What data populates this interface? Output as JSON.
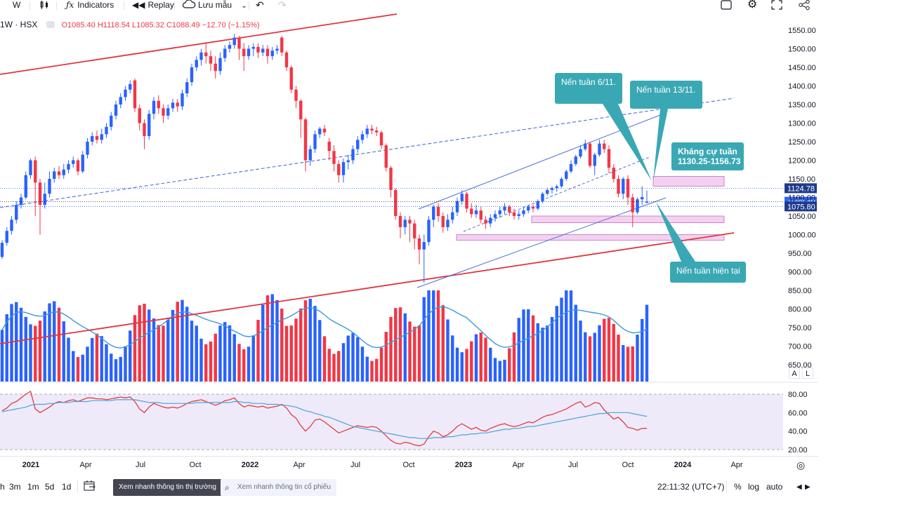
{
  "toolbar": {
    "interval": "W",
    "indicators": "Indicators",
    "replay": "Replay",
    "save": "Lưu mẫu",
    "icons": [
      "candles-icon",
      "fx-icon",
      "replay-icon",
      "cloud-icon",
      "chevron-down-icon",
      "undo-icon",
      "redo-icon",
      "square-icon",
      "gear-icon",
      "fullscreen-icon",
      "share-icon"
    ]
  },
  "legend": {
    "symbol": "1W · HSX",
    "open": "O1085.40",
    "high": "H1118.54",
    "low": "L1085.32",
    "close": "C1088.49",
    "change": "−12.70 (−1.15%)"
  },
  "axis_buttons": {
    "a": "A",
    "l": "L"
  },
  "bottom": {
    "ranges": [
      "3m",
      "1m",
      "5d",
      "1d"
    ],
    "market_btn": "Xem nhanh thông tin thị trường",
    "stock_search": "Xem nhanh thông tin cổ phiếu",
    "clock": "22:11:32 (UTC+7)",
    "percent": "%",
    "log": "log",
    "auto": "auto"
  },
  "chart_data": {
    "type": "candlestick",
    "interval": "1W",
    "price_axis": [
      "1550.00",
      "1500.00",
      "1450.00",
      "1400.00",
      "1350.00",
      "1300.00",
      "1250.00",
      "1200.00",
      "1150.00",
      "1100.00",
      "1050.00",
      "1000.00",
      "950.00",
      "900.00",
      "850.00",
      "800.00",
      "750.00",
      "700.00",
      "650.00"
    ],
    "price_range": [
      640,
      1560
    ],
    "time_axis": [
      "2021",
      "Apr",
      "Jul",
      "Oct",
      "2022",
      "Apr",
      "Jul",
      "Oct",
      "2023",
      "Apr",
      "Jul",
      "Oct",
      "2024",
      "Apr"
    ],
    "price_labels": [
      {
        "text": "1124.78",
        "value": 1124.78,
        "style": "dark"
      },
      {
        "text": "1088.49",
        "value": 1088.49,
        "style": "blue"
      },
      {
        "text": "1075.80",
        "value": 1075.8,
        "style": "dark"
      }
    ],
    "rsi_axis": [
      "80.00",
      "60.00",
      "40.00",
      "20.00"
    ],
    "rsi_band": [
      20,
      80
    ],
    "candles": [
      {
        "o": 940,
        "c": 978,
        "h": 985,
        "l": 935
      },
      {
        "o": 978,
        "c": 1010,
        "h": 1020,
        "l": 970
      },
      {
        "o": 1010,
        "c": 1040,
        "h": 1050,
        "l": 1000
      },
      {
        "o": 1040,
        "c": 1080,
        "h": 1090,
        "l": 1030
      },
      {
        "o": 1080,
        "c": 1100,
        "h": 1110,
        "l": 1070
      },
      {
        "o": 1100,
        "c": 1160,
        "h": 1170,
        "l": 1095
      },
      {
        "o": 1160,
        "c": 1200,
        "h": 1205,
        "l": 1150
      },
      {
        "o": 1200,
        "c": 1140,
        "h": 1210,
        "l": 1050
      },
      {
        "o": 1140,
        "c": 1080,
        "h": 1150,
        "l": 1000
      },
      {
        "o": 1080,
        "c": 1110,
        "h": 1140,
        "l": 1070
      },
      {
        "o": 1110,
        "c": 1150,
        "h": 1170,
        "l": 1100
      },
      {
        "o": 1150,
        "c": 1170,
        "h": 1180,
        "l": 1140
      },
      {
        "o": 1170,
        "c": 1160,
        "h": 1185,
        "l": 1150
      },
      {
        "o": 1160,
        "c": 1175,
        "h": 1190,
        "l": 1150
      },
      {
        "o": 1175,
        "c": 1190,
        "h": 1200,
        "l": 1165
      },
      {
        "o": 1190,
        "c": 1200,
        "h": 1210,
        "l": 1180
      },
      {
        "o": 1200,
        "c": 1170,
        "h": 1205,
        "l": 1160
      },
      {
        "o": 1170,
        "c": 1215,
        "h": 1225,
        "l": 1165
      },
      {
        "o": 1215,
        "c": 1250,
        "h": 1260,
        "l": 1205
      },
      {
        "o": 1250,
        "c": 1265,
        "h": 1275,
        "l": 1240
      },
      {
        "o": 1265,
        "c": 1255,
        "h": 1280,
        "l": 1245
      },
      {
        "o": 1255,
        "c": 1270,
        "h": 1285,
        "l": 1245
      },
      {
        "o": 1270,
        "c": 1290,
        "h": 1300,
        "l": 1260
      },
      {
        "o": 1290,
        "c": 1320,
        "h": 1330,
        "l": 1280
      },
      {
        "o": 1320,
        "c": 1350,
        "h": 1360,
        "l": 1310
      },
      {
        "o": 1350,
        "c": 1370,
        "h": 1380,
        "l": 1340
      },
      {
        "o": 1370,
        "c": 1390,
        "h": 1400,
        "l": 1360
      },
      {
        "o": 1390,
        "c": 1405,
        "h": 1415,
        "l": 1380
      },
      {
        "o": 1415,
        "c": 1340,
        "h": 1420,
        "l": 1330
      },
      {
        "o": 1340,
        "c": 1300,
        "h": 1350,
        "l": 1280
      },
      {
        "o": 1300,
        "c": 1265,
        "h": 1310,
        "l": 1230
      },
      {
        "o": 1265,
        "c": 1325,
        "h": 1335,
        "l": 1255
      },
      {
        "o": 1325,
        "c": 1360,
        "h": 1370,
        "l": 1310
      },
      {
        "o": 1360,
        "c": 1340,
        "h": 1375,
        "l": 1325
      },
      {
        "o": 1340,
        "c": 1320,
        "h": 1350,
        "l": 1300
      },
      {
        "o": 1320,
        "c": 1340,
        "h": 1350,
        "l": 1310
      },
      {
        "o": 1340,
        "c": 1355,
        "h": 1365,
        "l": 1330
      },
      {
        "o": 1355,
        "c": 1345,
        "h": 1365,
        "l": 1330
      },
      {
        "o": 1345,
        "c": 1380,
        "h": 1390,
        "l": 1335
      },
      {
        "o": 1380,
        "c": 1410,
        "h": 1420,
        "l": 1370
      },
      {
        "o": 1410,
        "c": 1450,
        "h": 1460,
        "l": 1400
      },
      {
        "o": 1450,
        "c": 1470,
        "h": 1480,
        "l": 1440
      },
      {
        "o": 1470,
        "c": 1490,
        "h": 1500,
        "l": 1455
      },
      {
        "o": 1490,
        "c": 1480,
        "h": 1515,
        "l": 1460
      },
      {
        "o": 1480,
        "c": 1460,
        "h": 1495,
        "l": 1440
      },
      {
        "o": 1460,
        "c": 1440,
        "h": 1480,
        "l": 1420
      },
      {
        "o": 1440,
        "c": 1475,
        "h": 1490,
        "l": 1430
      },
      {
        "o": 1475,
        "c": 1500,
        "h": 1510,
        "l": 1465
      },
      {
        "o": 1500,
        "c": 1510,
        "h": 1520,
        "l": 1490
      },
      {
        "o": 1510,
        "c": 1530,
        "h": 1540,
        "l": 1500
      },
      {
        "o": 1530,
        "c": 1500,
        "h": 1535,
        "l": 1470
      },
      {
        "o": 1500,
        "c": 1480,
        "h": 1515,
        "l": 1440
      },
      {
        "o": 1480,
        "c": 1500,
        "h": 1510,
        "l": 1470
      },
      {
        "o": 1500,
        "c": 1505,
        "h": 1515,
        "l": 1480
      },
      {
        "o": 1505,
        "c": 1490,
        "h": 1515,
        "l": 1475
      },
      {
        "o": 1490,
        "c": 1500,
        "h": 1510,
        "l": 1480
      },
      {
        "o": 1500,
        "c": 1480,
        "h": 1510,
        "l": 1460
      },
      {
        "o": 1480,
        "c": 1495,
        "h": 1505,
        "l": 1470
      },
      {
        "o": 1495,
        "c": 1500,
        "h": 1510,
        "l": 1485
      },
      {
        "o": 1530,
        "c": 1490,
        "h": 1535,
        "l": 1480
      },
      {
        "o": 1490,
        "c": 1450,
        "h": 1495,
        "l": 1440
      },
      {
        "o": 1450,
        "c": 1390,
        "h": 1455,
        "l": 1380
      },
      {
        "o": 1390,
        "c": 1360,
        "h": 1400,
        "l": 1340
      },
      {
        "o": 1360,
        "c": 1310,
        "h": 1365,
        "l": 1260
      },
      {
        "o": 1310,
        "c": 1200,
        "h": 1315,
        "l": 1170
      },
      {
        "o": 1200,
        "c": 1230,
        "h": 1240,
        "l": 1185
      },
      {
        "o": 1230,
        "c": 1270,
        "h": 1280,
        "l": 1220
      },
      {
        "o": 1270,
        "c": 1285,
        "h": 1290,
        "l": 1260
      },
      {
        "o": 1285,
        "c": 1275,
        "h": 1295,
        "l": 1265
      },
      {
        "o": 1250,
        "c": 1225,
        "h": 1260,
        "l": 1200
      },
      {
        "o": 1225,
        "c": 1190,
        "h": 1240,
        "l": 1170
      },
      {
        "o": 1190,
        "c": 1160,
        "h": 1200,
        "l": 1140
      },
      {
        "o": 1160,
        "c": 1195,
        "h": 1205,
        "l": 1140
      },
      {
        "o": 1195,
        "c": 1200,
        "h": 1215,
        "l": 1175
      },
      {
        "o": 1200,
        "c": 1230,
        "h": 1240,
        "l": 1190
      },
      {
        "o": 1230,
        "c": 1255,
        "h": 1265,
        "l": 1220
      },
      {
        "o": 1255,
        "c": 1270,
        "h": 1280,
        "l": 1245
      },
      {
        "o": 1270,
        "c": 1285,
        "h": 1295,
        "l": 1260
      },
      {
        "o": 1285,
        "c": 1280,
        "h": 1295,
        "l": 1270
      },
      {
        "o": 1280,
        "c": 1275,
        "h": 1290,
        "l": 1265
      },
      {
        "o": 1275,
        "c": 1240,
        "h": 1280,
        "l": 1230
      },
      {
        "o": 1240,
        "c": 1180,
        "h": 1245,
        "l": 1170
      },
      {
        "o": 1180,
        "c": 1120,
        "h": 1185,
        "l": 1100
      },
      {
        "o": 1120,
        "c": 1050,
        "h": 1125,
        "l": 1040
      },
      {
        "o": 1050,
        "c": 1020,
        "h": 1060,
        "l": 990
      },
      {
        "o": 1020,
        "c": 1040,
        "h": 1050,
        "l": 1000
      },
      {
        "o": 1040,
        "c": 1030,
        "h": 1050,
        "l": 980
      },
      {
        "o": 1030,
        "c": 990,
        "h": 1040,
        "l": 960
      },
      {
        "o": 990,
        "c": 960,
        "h": 1000,
        "l": 920
      },
      {
        "o": 960,
        "c": 980,
        "h": 1000,
        "l": 870
      },
      {
        "o": 980,
        "c": 1040,
        "h": 1050,
        "l": 970
      },
      {
        "o": 1040,
        "c": 1075,
        "h": 1080,
        "l": 1020
      },
      {
        "o": 1075,
        "c": 1050,
        "h": 1085,
        "l": 1035
      },
      {
        "o": 1050,
        "c": 1020,
        "h": 1060,
        "l": 1005
      },
      {
        "o": 1020,
        "c": 1040,
        "h": 1055,
        "l": 1010
      },
      {
        "o": 1040,
        "c": 1060,
        "h": 1075,
        "l": 1030
      },
      {
        "o": 1060,
        "c": 1090,
        "h": 1100,
        "l": 1050
      },
      {
        "o": 1090,
        "c": 1110,
        "h": 1120,
        "l": 1080
      },
      {
        "o": 1110,
        "c": 1070,
        "h": 1115,
        "l": 1060
      },
      {
        "o": 1070,
        "c": 1055,
        "h": 1085,
        "l": 1045
      },
      {
        "o": 1055,
        "c": 1065,
        "h": 1080,
        "l": 1045
      },
      {
        "o": 1065,
        "c": 1040,
        "h": 1075,
        "l": 1030
      },
      {
        "o": 1040,
        "c": 1030,
        "h": 1050,
        "l": 1015
      },
      {
        "o": 1030,
        "c": 1045,
        "h": 1055,
        "l": 1020
      },
      {
        "o": 1045,
        "c": 1055,
        "h": 1065,
        "l": 1035
      },
      {
        "o": 1055,
        "c": 1065,
        "h": 1075,
        "l": 1045
      },
      {
        "o": 1065,
        "c": 1075,
        "h": 1085,
        "l": 1055
      },
      {
        "o": 1075,
        "c": 1060,
        "h": 1080,
        "l": 1050
      },
      {
        "o": 1060,
        "c": 1050,
        "h": 1070,
        "l": 1040
      },
      {
        "o": 1050,
        "c": 1055,
        "h": 1065,
        "l": 1040
      },
      {
        "o": 1055,
        "c": 1065,
        "h": 1075,
        "l": 1048
      },
      {
        "o": 1065,
        "c": 1075,
        "h": 1080,
        "l": 1058
      },
      {
        "o": 1075,
        "c": 1070,
        "h": 1080,
        "l": 1060
      },
      {
        "o": 1070,
        "c": 1090,
        "h": 1095,
        "l": 1065
      },
      {
        "o": 1090,
        "c": 1110,
        "h": 1115,
        "l": 1085
      },
      {
        "o": 1110,
        "c": 1120,
        "h": 1125,
        "l": 1105
      },
      {
        "o": 1120,
        "c": 1125,
        "h": 1130,
        "l": 1110
      },
      {
        "o": 1125,
        "c": 1130,
        "h": 1135,
        "l": 1115
      },
      {
        "o": 1130,
        "c": 1150,
        "h": 1155,
        "l": 1125
      },
      {
        "o": 1150,
        "c": 1170,
        "h": 1175,
        "l": 1145
      },
      {
        "o": 1170,
        "c": 1190,
        "h": 1200,
        "l": 1165
      },
      {
        "o": 1190,
        "c": 1210,
        "h": 1215,
        "l": 1185
      },
      {
        "o": 1210,
        "c": 1230,
        "h": 1240,
        "l": 1205
      },
      {
        "o": 1230,
        "c": 1245,
        "h": 1255,
        "l": 1225
      },
      {
        "o": 1245,
        "c": 1185,
        "h": 1250,
        "l": 1180
      },
      {
        "o": 1185,
        "c": 1215,
        "h": 1220,
        "l": 1160
      },
      {
        "o": 1215,
        "c": 1245,
        "h": 1255,
        "l": 1210
      },
      {
        "o": 1245,
        "c": 1230,
        "h": 1255,
        "l": 1220
      },
      {
        "o": 1230,
        "c": 1180,
        "h": 1240,
        "l": 1165
      },
      {
        "o": 1180,
        "c": 1150,
        "h": 1190,
        "l": 1140
      },
      {
        "o": 1150,
        "c": 1110,
        "h": 1160,
        "l": 1100
      },
      {
        "o": 1110,
        "c": 1150,
        "h": 1155,
        "l": 1095
      },
      {
        "o": 1150,
        "c": 1100,
        "h": 1160,
        "l": 1080
      },
      {
        "o": 1100,
        "c": 1060,
        "h": 1110,
        "l": 1020
      },
      {
        "o": 1060,
        "c": 1095,
        "h": 1100,
        "l": 1055
      },
      {
        "o": 1095,
        "c": 1101,
        "h": 1130,
        "l": 1080
      },
      {
        "o": 1085.4,
        "c": 1088.49,
        "h": 1118.54,
        "l": 1085.32
      }
    ],
    "volume_dir": [],
    "rsi": [
      62,
      65,
      70,
      72,
      76,
      80,
      83,
      64,
      60,
      63,
      66,
      70,
      72,
      71,
      73,
      74,
      72,
      74,
      76,
      76,
      75,
      75,
      74,
      75,
      76,
      77,
      76,
      77,
      72,
      64,
      60,
      66,
      70,
      68,
      66,
      65,
      66,
      65,
      67,
      70,
      72,
      73,
      74,
      72,
      70,
      68,
      70,
      73,
      74,
      76,
      70,
      66,
      68,
      67,
      66,
      67,
      65,
      66,
      67,
      69,
      65,
      58,
      54,
      46,
      40,
      45,
      52,
      53,
      50,
      46,
      42,
      38,
      40,
      42,
      44,
      46,
      45,
      44,
      45,
      44,
      40,
      35,
      30,
      27,
      26,
      28,
      27,
      25,
      24,
      26,
      34,
      40,
      38,
      34,
      36,
      40,
      45,
      48,
      45,
      42,
      44,
      41,
      40,
      43,
      45,
      47,
      48,
      46,
      45,
      46,
      48,
      50,
      49,
      52,
      55,
      57,
      58,
      60,
      62,
      64,
      67,
      70,
      72,
      66,
      68,
      71,
      70,
      63,
      58,
      53,
      55,
      50,
      44,
      43,
      41,
      43,
      43
    ],
    "rsi_ma": [
      61,
      62,
      63,
      64,
      65,
      66,
      68,
      69,
      69,
      69,
      70,
      70,
      71,
      71,
      71,
      72,
      72,
      72,
      72,
      73,
      73,
      73,
      73,
      73,
      74,
      74,
      74,
      74,
      74,
      73,
      72,
      71,
      71,
      71,
      70,
      70,
      70,
      70,
      70,
      70,
      70,
      71,
      71,
      71,
      71,
      71,
      71,
      71,
      71,
      72,
      72,
      71,
      71,
      70,
      70,
      70,
      69,
      69,
      69,
      68,
      68,
      67,
      66,
      64,
      62,
      61,
      59,
      58,
      56,
      55,
      53,
      51,
      49,
      47,
      45,
      44,
      43,
      42,
      41,
      40,
      39,
      38,
      37,
      36,
      35,
      34,
      33,
      33,
      32,
      32,
      32,
      33,
      33,
      33,
      34,
      34,
      35,
      36,
      36,
      37,
      37,
      38,
      38,
      39,
      40,
      41,
      42,
      42,
      43,
      43,
      44,
      45,
      45,
      46,
      47,
      48,
      49,
      50,
      51,
      52,
      53,
      54,
      55,
      56,
      57,
      58,
      59,
      59,
      60,
      60,
      60,
      60,
      60,
      59,
      58,
      57,
      56
    ]
  },
  "annotations": {
    "callout_1": "Nến tuần 6/11.",
    "callout_2": "Nến tuần 13/11.",
    "callout_3": "Kháng cự tuần\n1130.25-1156.73",
    "callout_4": "Nến tuần hiện tại"
  },
  "colors": {
    "up": "#2962ff",
    "down": "#f23645",
    "volume_up": "#2962ff",
    "volume_down": "#f23645",
    "trend_red": "#e0353f",
    "trend_blue": "#4a6fd6",
    "callout": "#3aa8b4",
    "zone_fill": "#f3d1f0",
    "zone_stroke": "#c070c0",
    "rsi": "#e33c3c",
    "rsi_ma": "#4ba3d9",
    "rsi_band": "#efeafa"
  }
}
